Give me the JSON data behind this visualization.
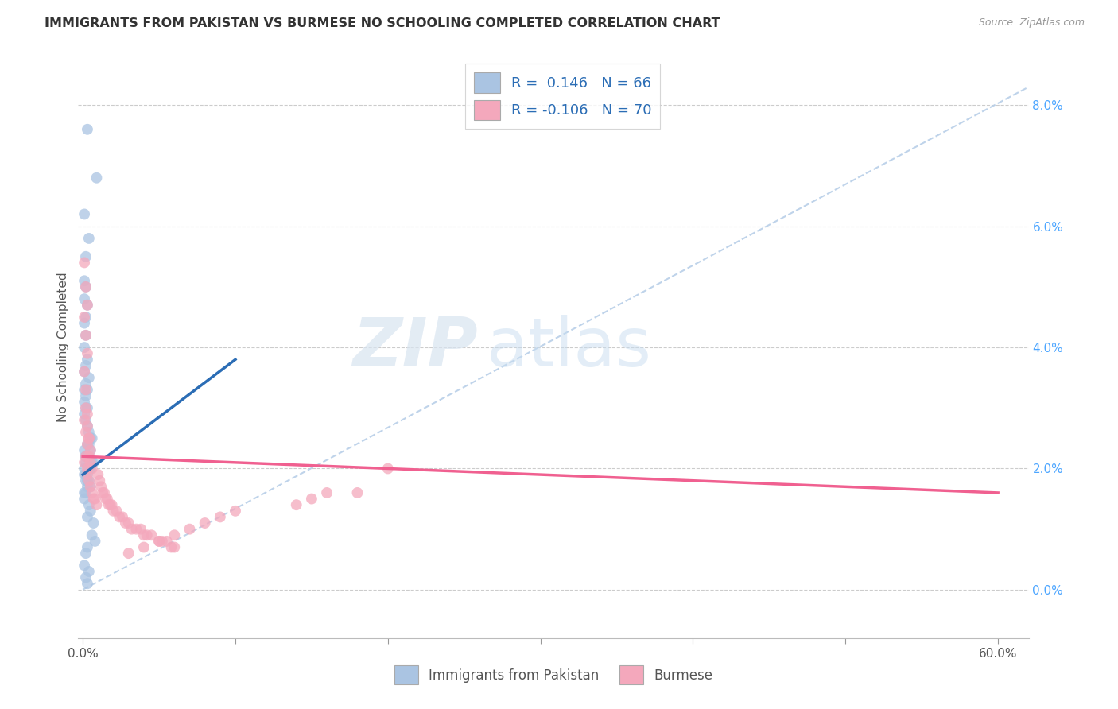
{
  "title": "IMMIGRANTS FROM PAKISTAN VS BURMESE NO SCHOOLING COMPLETED CORRELATION CHART",
  "source": "Source: ZipAtlas.com",
  "ylabel": "No Schooling Completed",
  "right_yticks": [
    "0.0%",
    "2.0%",
    "4.0%",
    "6.0%",
    "8.0%"
  ],
  "right_ytick_vals": [
    0.0,
    0.02,
    0.04,
    0.06,
    0.08
  ],
  "xlim": [
    -0.003,
    0.62
  ],
  "ylim": [
    -0.008,
    0.088
  ],
  "color_pakistan": "#aac4e2",
  "color_burmese": "#f4a8bc",
  "line_color_pakistan": "#2b6db5",
  "line_color_burmese": "#f06090",
  "dashed_line_color": "#b8cfe8",
  "background_color": "#ffffff",
  "watermark_zip": "ZIP",
  "watermark_atlas": "atlas",
  "pakistan_scatter_x": [
    0.003,
    0.009,
    0.001,
    0.004,
    0.002,
    0.001,
    0.002,
    0.001,
    0.003,
    0.002,
    0.001,
    0.002,
    0.001,
    0.003,
    0.002,
    0.001,
    0.004,
    0.002,
    0.003,
    0.001,
    0.002,
    0.001,
    0.003,
    0.002,
    0.001,
    0.002,
    0.003,
    0.004,
    0.005,
    0.006,
    0.003,
    0.004,
    0.005,
    0.002,
    0.003,
    0.006,
    0.007,
    0.005,
    0.004,
    0.003,
    0.002,
    0.003,
    0.004,
    0.005,
    0.003,
    0.002,
    0.001,
    0.001,
    0.002,
    0.002,
    0.001,
    0.001,
    0.002,
    0.001,
    0.004,
    0.005,
    0.003,
    0.007,
    0.006,
    0.008,
    0.003,
    0.002,
    0.001,
    0.004,
    0.002,
    0.003
  ],
  "pakistan_scatter_y": [
    0.076,
    0.068,
    0.062,
    0.058,
    0.055,
    0.051,
    0.05,
    0.048,
    0.047,
    0.045,
    0.044,
    0.042,
    0.04,
    0.038,
    0.037,
    0.036,
    0.035,
    0.034,
    0.033,
    0.033,
    0.032,
    0.031,
    0.03,
    0.03,
    0.029,
    0.028,
    0.027,
    0.026,
    0.025,
    0.025,
    0.024,
    0.024,
    0.023,
    0.022,
    0.022,
    0.021,
    0.021,
    0.02,
    0.02,
    0.019,
    0.019,
    0.018,
    0.018,
    0.017,
    0.017,
    0.016,
    0.016,
    0.023,
    0.022,
    0.021,
    0.02,
    0.019,
    0.018,
    0.015,
    0.014,
    0.013,
    0.012,
    0.011,
    0.009,
    0.008,
    0.007,
    0.006,
    0.004,
    0.003,
    0.002,
    0.001
  ],
  "burmese_scatter_x": [
    0.001,
    0.002,
    0.003,
    0.001,
    0.002,
    0.003,
    0.001,
    0.002,
    0.003,
    0.004,
    0.002,
    0.001,
    0.003,
    0.002,
    0.004,
    0.003,
    0.005,
    0.002,
    0.001,
    0.003,
    0.004,
    0.005,
    0.006,
    0.003,
    0.004,
    0.005,
    0.006,
    0.007,
    0.008,
    0.009,
    0.01,
    0.011,
    0.012,
    0.013,
    0.014,
    0.015,
    0.016,
    0.017,
    0.018,
    0.019,
    0.02,
    0.022,
    0.024,
    0.026,
    0.028,
    0.03,
    0.032,
    0.035,
    0.038,
    0.04,
    0.042,
    0.045,
    0.05,
    0.052,
    0.055,
    0.058,
    0.06,
    0.2,
    0.18,
    0.16,
    0.15,
    0.14,
    0.1,
    0.09,
    0.08,
    0.07,
    0.06,
    0.05,
    0.04,
    0.03
  ],
  "burmese_scatter_y": [
    0.054,
    0.05,
    0.047,
    0.045,
    0.042,
    0.039,
    0.036,
    0.033,
    0.029,
    0.025,
    0.03,
    0.028,
    0.027,
    0.026,
    0.025,
    0.024,
    0.023,
    0.022,
    0.021,
    0.02,
    0.022,
    0.021,
    0.02,
    0.019,
    0.018,
    0.017,
    0.016,
    0.015,
    0.015,
    0.014,
    0.019,
    0.018,
    0.017,
    0.016,
    0.016,
    0.015,
    0.015,
    0.014,
    0.014,
    0.014,
    0.013,
    0.013,
    0.012,
    0.012,
    0.011,
    0.011,
    0.01,
    0.01,
    0.01,
    0.009,
    0.009,
    0.009,
    0.008,
    0.008,
    0.008,
    0.007,
    0.007,
    0.02,
    0.016,
    0.016,
    0.015,
    0.014,
    0.013,
    0.012,
    0.011,
    0.01,
    0.009,
    0.008,
    0.007,
    0.006
  ],
  "pakistan_line_x": [
    0.0,
    0.1
  ],
  "pakistan_line_y": [
    0.019,
    0.038
  ],
  "burmese_line_x": [
    0.0,
    0.6
  ],
  "burmese_line_y": [
    0.022,
    0.016
  ],
  "dashed_line_x": [
    0.0,
    0.62
  ],
  "dashed_line_y": [
    0.0,
    0.083
  ]
}
